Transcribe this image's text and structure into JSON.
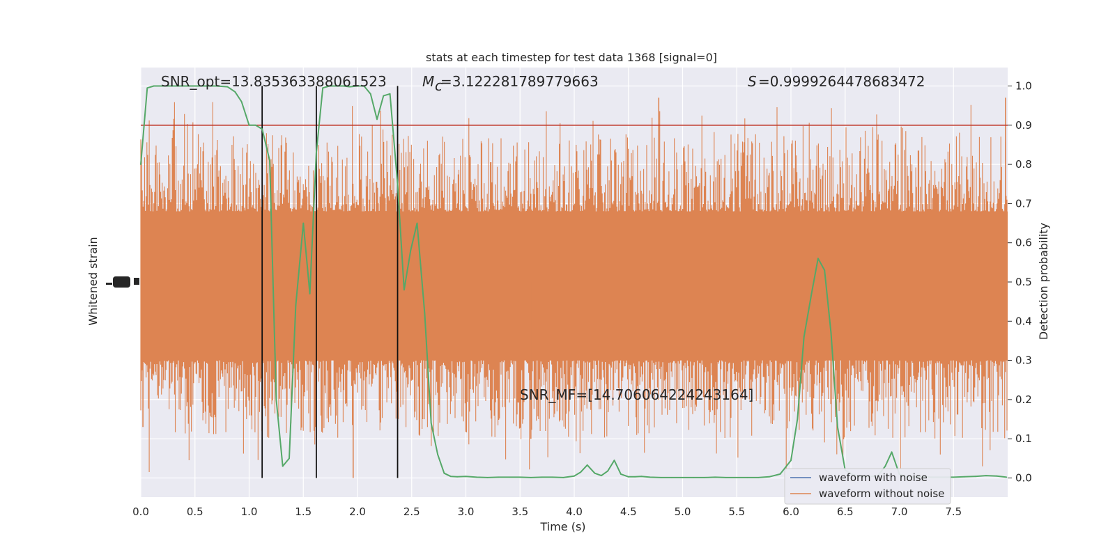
{
  "chart_data": {
    "type": "line",
    "title": "stats at each timestep for test data 1368 [signal=0]",
    "xlabel": "Time (s)",
    "ylabel_left": "Whitened strain",
    "ylabel_right": "Detection probability",
    "xlim": [
      0,
      8.0
    ],
    "ylim_right": [
      -0.05,
      1.05
    ],
    "x_ticks": [
      "0.0",
      "0.5",
      "1.0",
      "1.5",
      "2.0",
      "2.5",
      "3.0",
      "3.5",
      "4.0",
      "4.5",
      "5.0",
      "5.5",
      "6.0",
      "6.5",
      "7.0",
      "7.5"
    ],
    "x_tick_values": [
      0,
      0.5,
      1,
      1.5,
      2,
      2.5,
      3,
      3.5,
      4,
      4.5,
      5,
      5.5,
      6,
      6.5,
      7,
      7.5
    ],
    "y_right_ticks": [
      "0.0",
      "0.1",
      "0.2",
      "0.3",
      "0.4",
      "0.5",
      "0.6",
      "0.7",
      "0.8",
      "0.9",
      "1.0"
    ],
    "y_right_tick_values": [
      0,
      0.1,
      0.2,
      0.3,
      0.4,
      0.5,
      0.6,
      0.7,
      0.8,
      0.9,
      1.0
    ],
    "grid": true,
    "legend_position": "lower-right",
    "threshold": 0.9,
    "vlines_x": [
      1.12,
      1.62,
      2.37
    ],
    "annotations": {
      "snr_opt": "SNR_opt=13.835363388061523",
      "mc": "=3.122281789779663",
      "s": "=0.9999264478683472",
      "snr_mf": "SNR_MF=[14.706064224243164]"
    },
    "noise_band": {
      "dense_range_prob": [
        0.3,
        0.68
      ],
      "spike_max_prob": 0.97,
      "spike_min_prob": 0.0
    },
    "series": [
      {
        "name": "waveform with noise",
        "color": "#4c72b0",
        "x": [],
        "y": []
      },
      {
        "name": "waveform without noise",
        "color": "#dd8452",
        "x": [],
        "y": []
      },
      {
        "name": "",
        "color": "#55a868",
        "x": [
          0.0,
          0.06,
          0.12,
          0.2,
          0.3,
          0.4,
          0.5,
          0.6,
          0.7,
          0.8,
          0.87,
          0.93,
          1.0,
          1.06,
          1.12,
          1.19,
          1.25,
          1.31,
          1.37,
          1.43,
          1.5,
          1.56,
          1.62,
          1.68,
          1.74,
          1.81,
          1.87,
          1.93,
          2.0,
          2.06,
          2.12,
          2.18,
          2.24,
          2.3,
          2.37,
          2.43,
          2.49,
          2.55,
          2.62,
          2.68,
          2.74,
          2.8,
          2.86,
          2.92,
          3.0,
          3.1,
          3.2,
          3.3,
          3.4,
          3.5,
          3.6,
          3.7,
          3.8,
          3.9,
          4.0,
          4.06,
          4.12,
          4.19,
          4.25,
          4.31,
          4.37,
          4.43,
          4.5,
          4.56,
          4.62,
          4.7,
          4.8,
          4.9,
          5.0,
          5.1,
          5.2,
          5.3,
          5.4,
          5.5,
          5.6,
          5.7,
          5.8,
          5.9,
          6.0,
          6.06,
          6.12,
          6.19,
          6.25,
          6.31,
          6.37,
          6.43,
          6.5,
          6.56,
          6.62,
          6.68,
          6.74,
          6.8,
          6.87,
          6.93,
          7.0,
          7.06,
          7.12,
          7.2,
          7.3,
          7.4,
          7.5,
          7.6,
          7.7,
          7.8,
          7.9,
          7.99
        ],
        "y": [
          0.8,
          0.995,
          1.0,
          1.0,
          1.0,
          1.0,
          1.0,
          1.0,
          1.0,
          0.998,
          0.985,
          0.96,
          0.9,
          0.9,
          0.89,
          0.81,
          0.2,
          0.03,
          0.05,
          0.44,
          0.65,
          0.47,
          0.83,
          0.995,
          1.0,
          1.0,
          1.0,
          0.998,
          1.0,
          1.0,
          0.98,
          0.915,
          0.975,
          0.98,
          0.75,
          0.48,
          0.58,
          0.65,
          0.42,
          0.14,
          0.06,
          0.012,
          0.004,
          0.003,
          0.004,
          0.002,
          0.001,
          0.002,
          0.002,
          0.002,
          0.001,
          0.002,
          0.002,
          0.001,
          0.005,
          0.015,
          0.033,
          0.012,
          0.006,
          0.018,
          0.045,
          0.01,
          0.003,
          0.003,
          0.004,
          0.002,
          0.001,
          0.001,
          0.001,
          0.001,
          0.001,
          0.002,
          0.001,
          0.001,
          0.001,
          0.001,
          0.003,
          0.01,
          0.045,
          0.15,
          0.36,
          0.47,
          0.56,
          0.53,
          0.37,
          0.13,
          0.02,
          0.01,
          0.004,
          0.003,
          0.004,
          0.005,
          0.03,
          0.066,
          0.01,
          0.003,
          0.002,
          0.003,
          0.002,
          0.002,
          0.002,
          0.003,
          0.004,
          0.006,
          0.005,
          0.002
        ]
      }
    ]
  }
}
